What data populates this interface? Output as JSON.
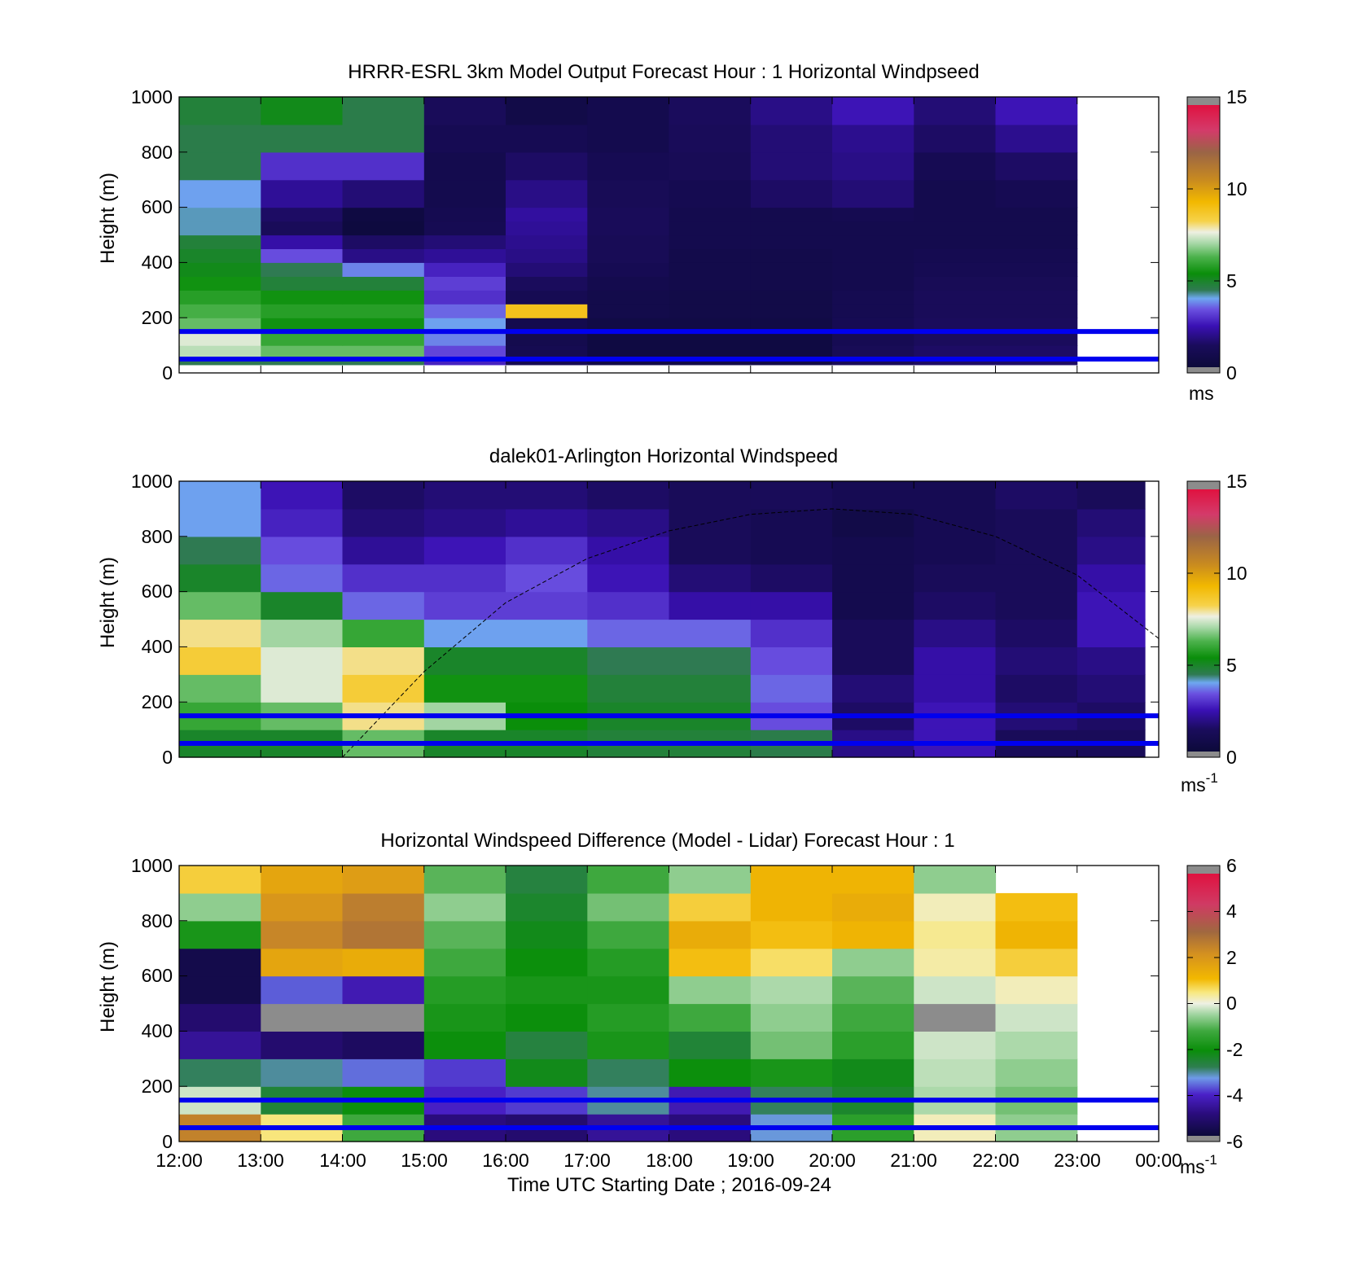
{
  "colorscales": {
    "speed": [
      [
        0.0,
        "#8c8c8c"
      ],
      [
        0.02,
        "#8c8c8c"
      ],
      [
        0.021,
        "#0c0a3a"
      ],
      [
        0.1,
        "#1a0c5c"
      ],
      [
        0.17,
        "#3a10b4"
      ],
      [
        0.23,
        "#6a50e0"
      ],
      [
        0.27,
        "#6ea8f0"
      ],
      [
        0.3,
        "#2f7a52"
      ],
      [
        0.36,
        "#0a8e0a"
      ],
      [
        0.42,
        "#4cb24c"
      ],
      [
        0.47,
        "#a8d8a8"
      ],
      [
        0.51,
        "#eef0e2"
      ],
      [
        0.55,
        "#f6d24a"
      ],
      [
        0.62,
        "#f2b800"
      ],
      [
        0.7,
        "#c88a20"
      ],
      [
        0.8,
        "#9a6446"
      ],
      [
        0.88,
        "#d43a6a"
      ],
      [
        0.97,
        "#e01240"
      ],
      [
        0.971,
        "#8c8c8c"
      ],
      [
        1.0,
        "#8c8c8c"
      ]
    ],
    "diff": [
      [
        0.0,
        "#8c8c8c"
      ],
      [
        0.02,
        "#8c8c8c"
      ],
      [
        0.021,
        "#0c0a3a"
      ],
      [
        0.1,
        "#2a0c7c"
      ],
      [
        0.17,
        "#4a20c8"
      ],
      [
        0.23,
        "#6e9ae8"
      ],
      [
        0.27,
        "#2e7e50"
      ],
      [
        0.33,
        "#0a8e0a"
      ],
      [
        0.4,
        "#3ea83e"
      ],
      [
        0.46,
        "#9fd49f"
      ],
      [
        0.5,
        "#eef0e4"
      ],
      [
        0.54,
        "#f8e880"
      ],
      [
        0.59,
        "#f2b800"
      ],
      [
        0.68,
        "#d49020"
      ],
      [
        0.76,
        "#a06840"
      ],
      [
        0.86,
        "#d03a64"
      ],
      [
        0.97,
        "#e01240"
      ],
      [
        0.971,
        "#8c8c8c"
      ],
      [
        1.0,
        "#8c8c8c"
      ]
    ]
  },
  "panels": [
    {
      "title": "HRRR-ESRL 3km Model Output   Forecast Hour : 1 Horizontal Windpseed",
      "ylabel": "Height (m)",
      "ytick_labels": [
        "0",
        "200",
        "400",
        "600",
        "800",
        "1000"
      ],
      "xtick_labels": [],
      "colorbar": {
        "tick_labels": [
          "0",
          "5",
          "10",
          "15"
        ],
        "unit": "ms",
        "unit_exp": ""
      }
    },
    {
      "title": "dalek01-Arlington  Horizontal Windspeed",
      "ylabel": "Height (m)",
      "ytick_labels": [
        "0",
        "200",
        "400",
        "600",
        "800",
        "1000"
      ],
      "xtick_labels": [],
      "colorbar": {
        "tick_labels": [
          "0",
          "5",
          "10",
          "15"
        ],
        "unit": "ms",
        "unit_exp": "-1"
      }
    },
    {
      "title": "Horizontal Windspeed Difference (Model - Lidar) Forecast Hour : 1",
      "ylabel": "Height (m)",
      "xlabel": "Time UTC  Starting Date ; 2016-09-24",
      "ytick_labels": [
        "0",
        "200",
        "400",
        "600",
        "800",
        "1000"
      ],
      "xtick_labels": [
        "12:00",
        "13:00",
        "14:00",
        "15:00",
        "16:00",
        "17:00",
        "18:00",
        "19:00",
        "20:00",
        "21:00",
        "22:00",
        "23:00",
        "00:00"
      ],
      "colorbar": {
        "tick_labels": [
          "-6",
          "-4",
          "-2",
          "0",
          "2",
          "4",
          "6"
        ],
        "unit": "ms",
        "unit_exp": "-1"
      }
    }
  ],
  "chart_data": [
    {
      "type": "heatmap",
      "title": "HRRR-ESRL 3km Model Output   Forecast Hour : 1 Horizontal Windpseed",
      "ylabel": "Height (m)",
      "x_unit": "hours UTC from 12:00",
      "xlim": [
        12,
        24
      ],
      "ylim": [
        0,
        1000
      ],
      "clim": [
        0,
        15
      ],
      "colorbar_label": "ms",
      "reference_lines_height_m": [
        50,
        150
      ],
      "x_edges": [
        12,
        13,
        14,
        15,
        16,
        17,
        18,
        19,
        20,
        21,
        22,
        23
      ],
      "y_edges": [
        30,
        60,
        100,
        150,
        200,
        250,
        300,
        350,
        400,
        450,
        500,
        550,
        600,
        700,
        800,
        900,
        1000
      ],
      "z": [
        [
          4.5,
          4.5,
          4.5,
          2.8,
          1.2,
          0.8,
          0.8,
          0.8,
          1.4,
          1.6,
          1.6
        ],
        [
          7.2,
          6.5,
          6.5,
          3.3,
          1.1,
          0.6,
          0.6,
          0.6,
          1.3,
          1.6,
          1.6
        ],
        [
          7.5,
          6.0,
          6.0,
          3.8,
          1.0,
          0.6,
          0.6,
          0.6,
          1.2,
          1.5,
          1.5
        ],
        [
          6.5,
          5.5,
          5.5,
          4.0,
          1.0,
          0.7,
          0.7,
          0.7,
          1.2,
          1.5,
          1.5
        ],
        [
          6.2,
          5.8,
          5.8,
          3.6,
          8.9,
          0.9,
          0.8,
          0.8,
          1.1,
          1.4,
          1.4
        ],
        [
          5.8,
          5.5,
          5.5,
          3.0,
          1.2,
          0.9,
          0.8,
          0.8,
          1.1,
          1.4,
          1.4
        ],
        [
          5.5,
          4.8,
          4.8,
          3.2,
          1.5,
          1.0,
          0.9,
          0.9,
          1.0,
          1.3,
          1.3
        ],
        [
          5.2,
          4.5,
          3.8,
          2.8,
          1.8,
          1.2,
          0.9,
          0.9,
          1.0,
          1.2,
          1.2
        ],
        [
          5.0,
          3.4,
          2.0,
          2.2,
          2.0,
          1.3,
          0.9,
          0.9,
          1.0,
          1.1,
          1.1
        ],
        [
          4.8,
          2.4,
          1.6,
          1.8,
          2.1,
          1.3,
          1.0,
          1.0,
          1.0,
          1.0,
          1.0
        ],
        [
          4.2,
          1.4,
          0.5,
          1.2,
          2.2,
          1.4,
          1.0,
          1.0,
          1.0,
          1.0,
          1.0
        ],
        [
          4.2,
          1.6,
          0.6,
          1.1,
          2.3,
          1.4,
          1.0,
          1.0,
          1.1,
          1.0,
          1.0
        ],
        [
          4.0,
          2.2,
          1.8,
          1.0,
          2.0,
          1.3,
          1.1,
          1.6,
          1.8,
          1.0,
          1.2
        ],
        [
          4.6,
          3.0,
          3.0,
          1.0,
          1.6,
          1.2,
          1.3,
          1.8,
          2.0,
          1.2,
          1.6
        ],
        [
          4.6,
          4.6,
          4.6,
          1.2,
          1.2,
          1.0,
          1.4,
          1.8,
          2.1,
          1.6,
          2.1
        ],
        [
          4.8,
          5.2,
          4.6,
          1.4,
          0.8,
          1.0,
          1.5,
          2.0,
          2.6,
          1.8,
          2.6
        ]
      ]
    },
    {
      "type": "heatmap",
      "title": "dalek01-Arlington  Horizontal Windspeed",
      "ylabel": "Height (m)",
      "x_unit": "hours UTC from 12:00",
      "xlim": [
        12,
        24
      ],
      "ylim": [
        0,
        1000
      ],
      "clim": [
        0,
        15
      ],
      "colorbar_label": "ms-1",
      "reference_lines_height_m": [
        50,
        150
      ],
      "x_edges": [
        12,
        13,
        14,
        15,
        16,
        17,
        18,
        19,
        20,
        21,
        22,
        23,
        23.83
      ],
      "y_edges": [
        0,
        100,
        200,
        300,
        400,
        500,
        600,
        700,
        800,
        900,
        1000
      ],
      "z": [
        [
          5.0,
          5.0,
          6.5,
          5.0,
          5.0,
          4.8,
          4.8,
          4.6,
          2.0,
          2.6,
          1.4,
          1.4
        ],
        [
          6.0,
          6.5,
          8.0,
          7.0,
          5.4,
          5.0,
          5.0,
          3.4,
          1.6,
          2.6,
          1.8,
          1.6
        ],
        [
          6.5,
          7.5,
          8.5,
          5.5,
          5.5,
          4.8,
          4.8,
          3.6,
          1.8,
          2.4,
          1.6,
          1.8
        ],
        [
          8.5,
          7.5,
          8.0,
          5.0,
          5.0,
          4.5,
          4.5,
          3.4,
          1.4,
          2.4,
          1.8,
          2.0
        ],
        [
          8.0,
          7.0,
          6.0,
          4.0,
          4.0,
          3.6,
          3.6,
          3.0,
          1.4,
          2.0,
          1.6,
          2.6
        ],
        [
          6.5,
          5.0,
          3.6,
          3.2,
          3.2,
          3.0,
          2.4,
          2.4,
          1.0,
          1.6,
          1.4,
          2.6
        ],
        [
          5.0,
          3.6,
          3.0,
          3.0,
          3.4,
          2.6,
          1.8,
          1.6,
          1.0,
          1.4,
          1.4,
          2.4
        ],
        [
          4.5,
          3.4,
          2.2,
          2.6,
          3.0,
          2.4,
          1.4,
          1.2,
          1.0,
          1.2,
          1.4,
          2.0
        ],
        [
          4.0,
          2.8,
          1.8,
          2.0,
          2.2,
          2.0,
          1.4,
          1.2,
          0.8,
          1.2,
          1.4,
          1.8
        ],
        [
          4.0,
          2.6,
          1.6,
          1.8,
          1.8,
          1.6,
          1.4,
          1.4,
          1.2,
          1.2,
          1.6,
          1.4
        ]
      ],
      "overlay_curve": {
        "label": "",
        "x": [
          14,
          15,
          16,
          17,
          18,
          19,
          20,
          21,
          22,
          23,
          24
        ],
        "y": [
          0,
          310,
          560,
          720,
          820,
          880,
          900,
          880,
          800,
          660,
          430
        ]
      }
    },
    {
      "type": "heatmap",
      "title": "Horizontal Windspeed Difference (Model - Lidar) Forecast Hour : 1",
      "xlabel": "Time UTC  Starting Date ; 2016-09-24",
      "ylabel": "Height (m)",
      "x_unit": "hours UTC from 12:00",
      "xlim": [
        12,
        24
      ],
      "ylim": [
        0,
        1000
      ],
      "clim": [
        -6,
        6
      ],
      "colorbar_label": "ms-1",
      "reference_lines_height_m": [
        50,
        150
      ],
      "x_edges": [
        12,
        13,
        14,
        15,
        16,
        17,
        18,
        19,
        20,
        21,
        22,
        23
      ],
      "y_edges": [
        0,
        100,
        200,
        300,
        400,
        500,
        600,
        700,
        800,
        900,
        1000
      ],
      "z": [
        [
          2.5,
          0.5,
          -1.2,
          -4.8,
          -5.0,
          -4.5,
          -4.8,
          -3.2,
          -1.5,
          0.2,
          -0.6
        ],
        [
          -0.2,
          -2.5,
          -2.0,
          -4.0,
          -3.8,
          -3.0,
          -4.2,
          -2.8,
          -2.4,
          -0.4,
          -0.8
        ],
        [
          -2.8,
          -3.0,
          -3.5,
          -3.8,
          -2.2,
          -2.8,
          -2.0,
          -1.8,
          -2.2,
          -0.3,
          -0.6
        ],
        [
          -4.5,
          -5.0,
          -5.2,
          -2.0,
          -2.6,
          -1.8,
          -2.5,
          -0.8,
          -1.5,
          -0.2,
          -0.4
        ],
        [
          -5.0,
          -6.5,
          -6.5,
          -1.8,
          -2.0,
          -1.6,
          -1.2,
          -0.6,
          -1.2,
          -6.5,
          -0.2
        ],
        [
          -5.5,
          -3.6,
          -4.2,
          -1.6,
          -1.8,
          -1.8,
          -0.6,
          -0.4,
          -1.0,
          -0.2,
          0.2
        ],
        [
          -5.5,
          1.6,
          1.4,
          -1.2,
          -2.0,
          -1.6,
          1.0,
          0.6,
          -0.6,
          0.3,
          0.8
        ],
        [
          -1.8,
          2.4,
          2.8,
          -1.0,
          -2.2,
          -1.2,
          1.4,
          1.0,
          1.2,
          0.4,
          1.2
        ],
        [
          -0.6,
          2.0,
          2.6,
          -0.6,
          -2.4,
          -0.8,
          0.8,
          1.2,
          1.4,
          0.2,
          1.0
        ],
        [
          0.8,
          1.6,
          1.8,
          -1.0,
          -2.6,
          -1.2,
          -0.6,
          1.2,
          1.2,
          -0.6,
          null
        ]
      ]
    }
  ]
}
